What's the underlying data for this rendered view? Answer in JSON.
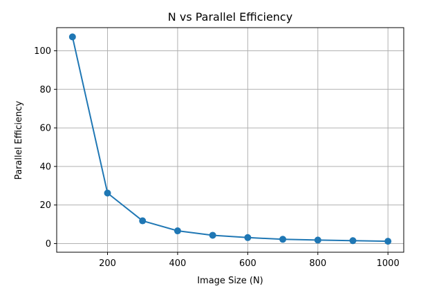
{
  "chart_data": {
    "type": "line",
    "title": "N vs Parallel Efficiency",
    "xlabel": "Image Size (N)",
    "ylabel": "Parallel Efficiency",
    "xlim": [
      55,
      1045
    ],
    "ylim": [
      -4.5,
      112
    ],
    "x_ticks": [
      200,
      400,
      600,
      800,
      1000
    ],
    "y_ticks": [
      0,
      20,
      40,
      60,
      80,
      100
    ],
    "grid": true,
    "legend": "none",
    "series": [
      {
        "color": "#1f77b4",
        "marker": "circle",
        "x": [
          100,
          200,
          300,
          400,
          500,
          600,
          700,
          800,
          900,
          1000
        ],
        "y": [
          107.2,
          26.2,
          11.8,
          6.6,
          4.3,
          3.1,
          2.2,
          1.8,
          1.5,
          1.2
        ]
      }
    ]
  }
}
